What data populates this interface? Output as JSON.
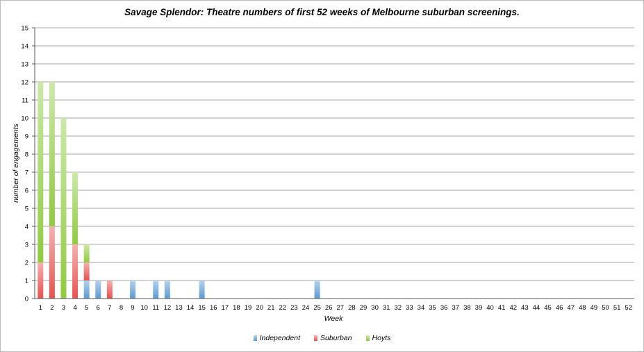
{
  "chart_data": {
    "type": "bar",
    "stacked": true,
    "title": "Savage Splendor: Theatre numbers of first 52 weeks of Melbourne suburban screenings.",
    "xlabel": "Week",
    "ylabel": "number of engagements",
    "ylim": [
      0,
      15
    ],
    "yticks": [
      "0",
      "1",
      "2",
      "3",
      "4",
      "5",
      "6",
      "7",
      "8",
      "9",
      "10",
      "11",
      "12",
      "13",
      "14",
      "15"
    ],
    "categories": [
      "1",
      "2",
      "3",
      "4",
      "5",
      "6",
      "7",
      "8",
      "9",
      "10",
      "11",
      "12",
      "13",
      "14",
      "15",
      "16",
      "17",
      "18",
      "19",
      "20",
      "21",
      "22",
      "23",
      "24",
      "25",
      "26",
      "27",
      "28",
      "29",
      "30",
      "31",
      "32",
      "33",
      "34",
      "35",
      "36",
      "37",
      "38",
      "39",
      "40",
      "41",
      "42",
      "43",
      "44",
      "45",
      "46",
      "47",
      "48",
      "49",
      "50",
      "51",
      "52"
    ],
    "grid": true,
    "legend_position": "bottom",
    "series": [
      {
        "name": "Independent",
        "color": "#5b9bd5",
        "values": [
          0,
          0,
          0,
          0,
          1,
          1,
          0,
          0,
          1,
          0,
          1,
          1,
          0,
          0,
          1,
          0,
          0,
          0,
          0,
          0,
          0,
          0,
          0,
          0,
          1,
          0,
          0,
          0,
          0,
          0,
          0,
          0,
          0,
          0,
          0,
          0,
          0,
          0,
          0,
          0,
          0,
          0,
          0,
          0,
          0,
          0,
          0,
          0,
          0,
          0,
          0,
          0
        ]
      },
      {
        "name": "Suburban",
        "color": "#e8514f",
        "values": [
          2,
          4,
          0,
          3,
          1,
          0,
          1,
          0,
          0,
          0,
          0,
          0,
          0,
          0,
          0,
          0,
          0,
          0,
          0,
          0,
          0,
          0,
          0,
          0,
          0,
          0,
          0,
          0,
          0,
          0,
          0,
          0,
          0,
          0,
          0,
          0,
          0,
          0,
          0,
          0,
          0,
          0,
          0,
          0,
          0,
          0,
          0,
          0,
          0,
          0,
          0,
          0
        ]
      },
      {
        "name": "Hoyts",
        "color": "#8fcb3f",
        "values": [
          10,
          8,
          10,
          4,
          1,
          0,
          0,
          0,
          0,
          0,
          0,
          0,
          0,
          0,
          0,
          0,
          0,
          0,
          0,
          0,
          0,
          0,
          0,
          0,
          0,
          0,
          0,
          0,
          0,
          0,
          0,
          0,
          0,
          0,
          0,
          0,
          0,
          0,
          0,
          0,
          0,
          0,
          0,
          0,
          0,
          0,
          0,
          0,
          0,
          0,
          0,
          0
        ]
      }
    ]
  }
}
